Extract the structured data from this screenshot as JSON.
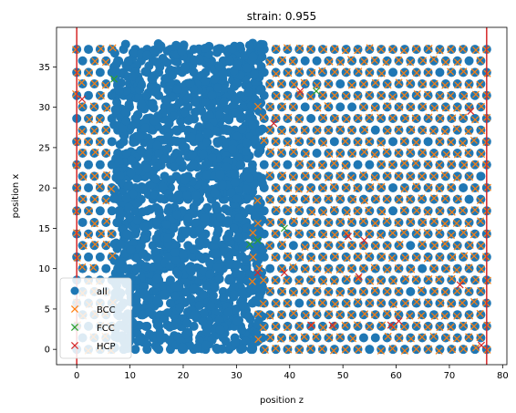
{
  "chart_data": {
    "type": "scatter",
    "title": "strain: 0.955",
    "xlabel": "position z",
    "ylabel": "position x",
    "xlim": [
      -3.8,
      80.8
    ],
    "ylim": [
      -1.9,
      39.9
    ],
    "xticks": [
      0,
      10,
      20,
      30,
      40,
      50,
      60,
      70,
      80
    ],
    "yticks": [
      0,
      5,
      10,
      15,
      20,
      25,
      30,
      35
    ],
    "grid": false,
    "legend_placement": "lower-left",
    "vertical_lines": [
      {
        "x": 0,
        "color": "#d62728"
      },
      {
        "x": 77,
        "color": "#d62728"
      }
    ],
    "series": [
      {
        "name": "all",
        "marker": "circle",
        "color": "#1f77b4",
        "description": "dense circles filling x range 0-38 across z 0-77"
      },
      {
        "name": "BCC",
        "marker": "x",
        "color": "#ff7f0e",
        "description": "crosses on lattice sites mostly z 35-77 and z 0-8"
      },
      {
        "name": "FCC",
        "marker": "x",
        "color": "#2ca02c",
        "points": [
          [
            7,
            33.5
          ],
          [
            45,
            32
          ],
          [
            39,
            15
          ],
          [
            34,
            13.5
          ],
          [
            32.5,
            13
          ]
        ]
      },
      {
        "name": "HCP",
        "marker": "x",
        "color": "#d62728",
        "points": [
          [
            1,
            31
          ],
          [
            42,
            32
          ],
          [
            37,
            28
          ],
          [
            74,
            29.5
          ],
          [
            34,
            9.5
          ],
          [
            39,
            9.5
          ],
          [
            44,
            3
          ],
          [
            48,
            3
          ],
          [
            59,
            3
          ],
          [
            60.5,
            3.5
          ],
          [
            53,
            9
          ],
          [
            54,
            13.5
          ],
          [
            51,
            14
          ],
          [
            76,
            0.5
          ],
          [
            72,
            8
          ]
        ]
      }
    ]
  }
}
